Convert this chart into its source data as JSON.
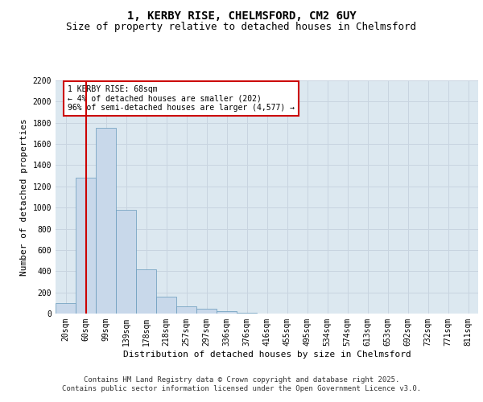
{
  "title_line1": "1, KERBY RISE, CHELMSFORD, CM2 6UY",
  "title_line2": "Size of property relative to detached houses in Chelmsford",
  "xlabel": "Distribution of detached houses by size in Chelmsford",
  "ylabel": "Number of detached properties",
  "categories": [
    "20sqm",
    "60sqm",
    "99sqm",
    "139sqm",
    "178sqm",
    "218sqm",
    "257sqm",
    "297sqm",
    "336sqm",
    "376sqm",
    "416sqm",
    "455sqm",
    "495sqm",
    "534sqm",
    "574sqm",
    "613sqm",
    "653sqm",
    "692sqm",
    "732sqm",
    "771sqm",
    "811sqm"
  ],
  "values": [
    100,
    1280,
    1750,
    980,
    420,
    160,
    65,
    45,
    20,
    5,
    0,
    0,
    0,
    0,
    0,
    0,
    0,
    0,
    0,
    0,
    0
  ],
  "bar_color": "#c8d8ea",
  "bar_edge_color": "#6699bb",
  "vline_x": 1,
  "vline_color": "#cc0000",
  "annotation_text": "1 KERBY RISE: 68sqm\n← 4% of detached houses are smaller (202)\n96% of semi-detached houses are larger (4,577) →",
  "annotation_box_facecolor": "#ffffff",
  "annotation_box_edgecolor": "#cc0000",
  "ylim": [
    0,
    2200
  ],
  "yticks": [
    0,
    200,
    400,
    600,
    800,
    1000,
    1200,
    1400,
    1600,
    1800,
    2000,
    2200
  ],
  "grid_color": "#c8d4e0",
  "background_color": "#dce8f0",
  "title_fontsize": 10,
  "subtitle_fontsize": 9,
  "axis_label_fontsize": 8,
  "tick_fontsize": 7,
  "annotation_fontsize": 7,
  "footer_fontsize": 6.5,
  "footer_line1": "Contains HM Land Registry data © Crown copyright and database right 2025.",
  "footer_line2": "Contains public sector information licensed under the Open Government Licence v3.0."
}
